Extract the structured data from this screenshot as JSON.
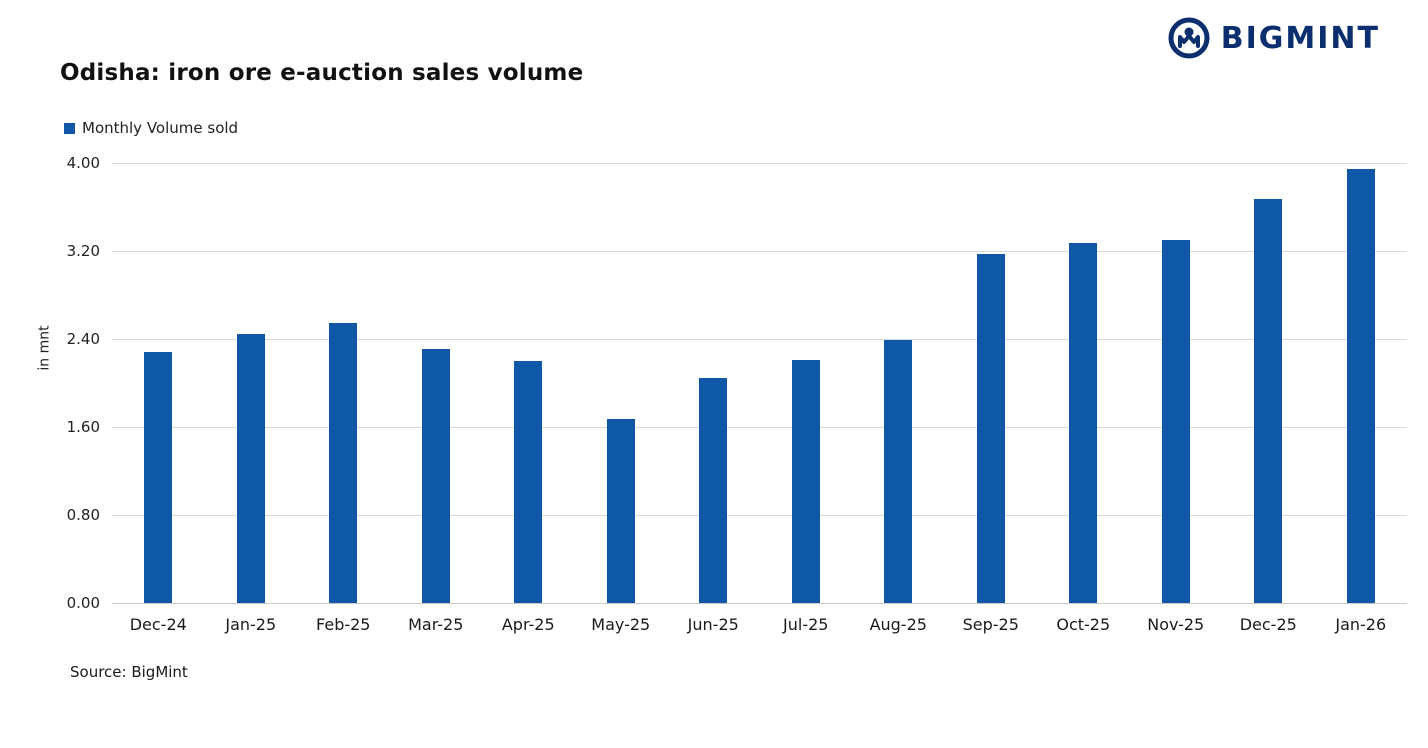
{
  "header": {
    "title": "Odisha: iron ore e-auction sales volume",
    "brand": "BIGMINT"
  },
  "legend": {
    "label": "Monthly Volume sold"
  },
  "source": "Source: BigMint",
  "colors": {
    "bar": "#0f58a8",
    "brand_navy": "#0a2e6e",
    "grid": "#d9d9d9"
  },
  "chart_data": {
    "type": "bar",
    "title": "Odisha: iron ore e-auction sales volume",
    "categories": [
      "Dec-24",
      "Jan-25",
      "Feb-25",
      "Mar-25",
      "Apr-25",
      "May-25",
      "Jun-25",
      "Jul-25",
      "Aug-25",
      "Sep-25",
      "Oct-25",
      "Nov-25",
      "Dec-25",
      "Jan-26"
    ],
    "values": [
      2.28,
      2.45,
      2.55,
      2.31,
      2.2,
      1.67,
      2.05,
      2.21,
      2.39,
      3.17,
      3.27,
      3.3,
      3.67,
      3.95
    ],
    "series_name": "Monthly Volume sold",
    "xlabel": "",
    "ylabel": "in mnt",
    "ylim": [
      0,
      4.0
    ],
    "yticks": [
      0.0,
      0.8,
      1.6,
      2.4,
      3.2,
      4.0
    ],
    "ytick_labels": [
      "0.00",
      "0.80",
      "1.60",
      "2.40",
      "3.20",
      "4.00"
    ],
    "grid": "horizontal",
    "legend_entries": [
      "Monthly Volume sold"
    ],
    "legend_position": "top-left",
    "source": "Source: BigMint"
  }
}
